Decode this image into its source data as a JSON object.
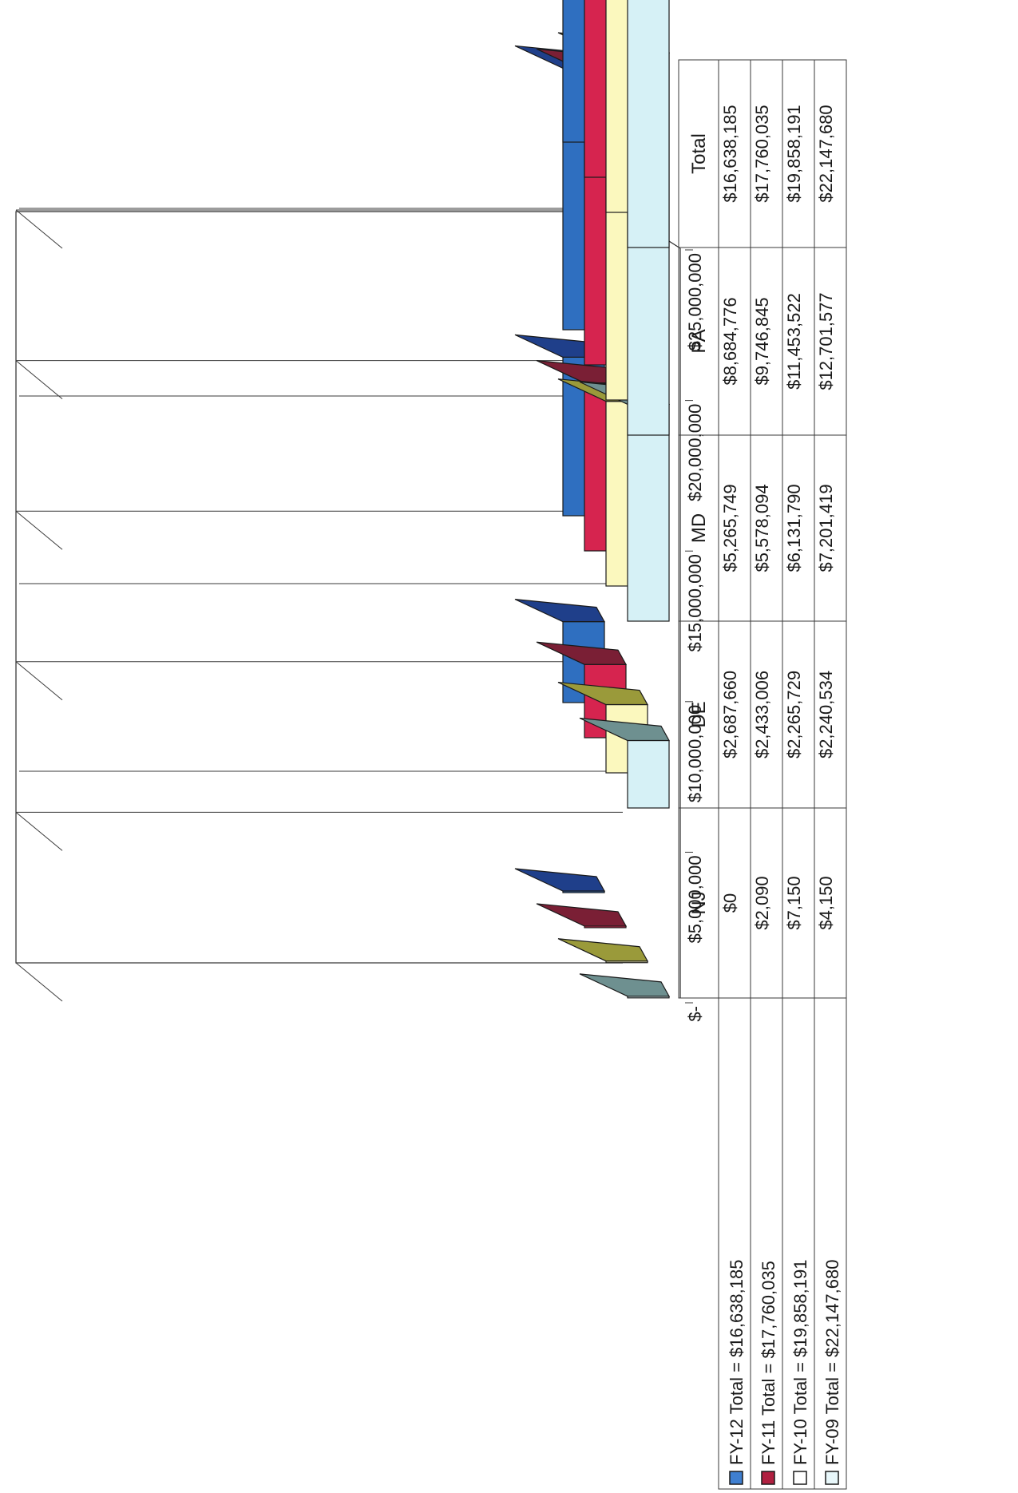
{
  "chart_data": {
    "type": "bar",
    "orientation": "3d-horizontal-rotated",
    "categories": [
      "NJ",
      "DE",
      "MD",
      "PA",
      "Total"
    ],
    "axis": {
      "ticks": [
        0,
        5000000,
        10000000,
        15000000,
        20000000,
        25000000
      ],
      "tick_labels": [
        "$-",
        "$5,000,000",
        "$10,000,000",
        "$15,000,000",
        "$20,000,000",
        "$25,000,000"
      ],
      "range": [
        0,
        25000000
      ]
    },
    "grid": true,
    "legend_placement": "bottom",
    "series": [
      {
        "name": "FY-12 Total = $16,638,185",
        "values": [
          0,
          2687660,
          5265749,
          8684776,
          16638185
        ],
        "labels": [
          "$0",
          "$2,687,660",
          "$5,265,749",
          "$8,684,776",
          "$16,638,185"
        ],
        "color": "#2f6fc0",
        "top": "#1f3f8a",
        "side": "#274f9a",
        "swatch": "#3f7fd0"
      },
      {
        "name": "FY-11 Total = $17,760,035",
        "values": [
          2090,
          2433006,
          5578094,
          9746845,
          17760035
        ],
        "labels": [
          "$2,090",
          "$2,433,006",
          "$5,578,094",
          "$9,746,845",
          "$17,760,035"
        ],
        "color": "#d6244f",
        "top": "#7a1f35",
        "side": "#9a2440",
        "swatch": "#b02040"
      },
      {
        "name": "FY-10 Total = $19,858,191",
        "values": [
          7150,
          2265729,
          6131790,
          11453522,
          19858191
        ],
        "labels": [
          "$7,150",
          "$2,265,729",
          "$6,131,790",
          "$11,453,522",
          "$19,858,191"
        ],
        "color": "#fbf8be",
        "top": "#9a9a3a",
        "side": "#e8e46a",
        "swatch": "#ffffff"
      },
      {
        "name": "FY-09 Total = $22,147,680",
        "values": [
          4150,
          2240534,
          7201419,
          12701577,
          22147680
        ],
        "labels": [
          "$4,150",
          "$2,240,534",
          "$7,201,419",
          "$12,701,577",
          "$22,147,680"
        ],
        "color": "#d6f1f6",
        "top": "#6e9090",
        "side": "#a8dde8",
        "swatch": "#e8f7fa"
      }
    ]
  }
}
